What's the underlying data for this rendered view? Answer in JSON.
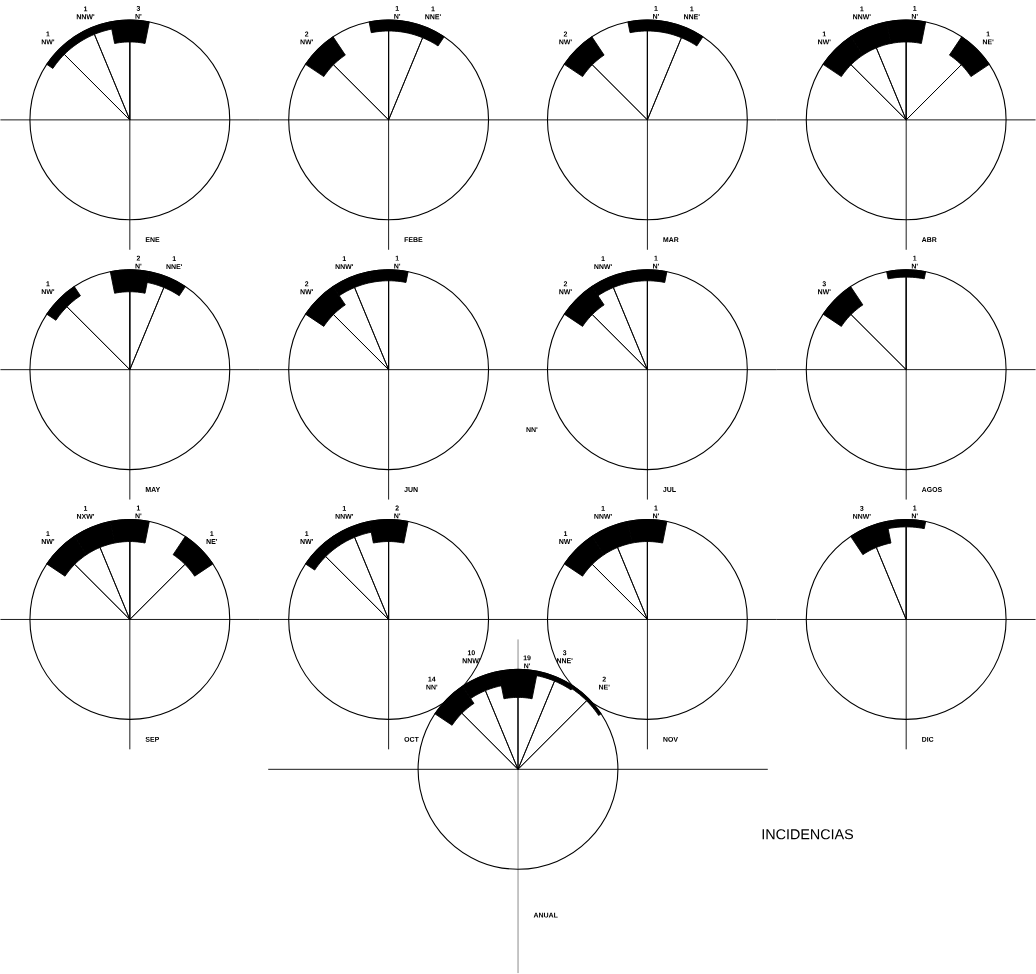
{
  "chart_data": [
    {
      "type": "other",
      "title": "ENE",
      "categories": [
        "NW'",
        "NNW'",
        "N'",
        null,
        null
      ],
      "values": [
        1,
        1,
        3,
        null,
        null
      ],
      "data_labels": true
    },
    {
      "type": "other",
      "title": "FEBE",
      "categories": [
        "NW'",
        null,
        "N'",
        "NNE'",
        null
      ],
      "values": [
        2,
        null,
        1,
        1,
        null
      ],
      "data_labels": true
    },
    {
      "type": "other",
      "title": "MAR",
      "categories": [
        "NW'",
        null,
        "N'",
        "NNE'",
        null
      ],
      "values": [
        2,
        null,
        1,
        1,
        null
      ],
      "data_labels": true
    },
    {
      "type": "other",
      "title": "ABR",
      "categories": [
        "NW'",
        "NNW'",
        "N'",
        null,
        "NE'"
      ],
      "values": [
        1,
        1,
        1,
        null,
        1
      ],
      "data_labels": true
    },
    {
      "type": "other",
      "title": "MAY",
      "categories": [
        "NW'",
        null,
        "N'",
        "NNE'",
        null
      ],
      "values": [
        1,
        null,
        2,
        1,
        null
      ],
      "data_labels": true
    },
    {
      "type": "other",
      "title": "JUN",
      "categories": [
        "NW'",
        "NNW'",
        "N'",
        null,
        null
      ],
      "values": [
        2,
        1,
        1,
        null,
        null
      ],
      "data_labels": true
    },
    {
      "type": "other",
      "title": "JUL",
      "categories": [
        "NW'",
        "NNW'",
        "N'",
        null,
        null
      ],
      "values": [
        2,
        1,
        1,
        null,
        null
      ],
      "data_labels": true,
      "annotations": [
        "NN'"
      ]
    },
    {
      "type": "other",
      "title": "AGOS",
      "categories": [
        "NW'",
        null,
        "N'",
        null,
        null
      ],
      "values": [
        3,
        null,
        1,
        null,
        null
      ],
      "data_labels": true
    },
    {
      "type": "other",
      "title": "SEP",
      "categories": [
        "NW'",
        "NXW'",
        "N'",
        null,
        "NE'"
      ],
      "values": [
        1,
        1,
        1,
        null,
        1
      ],
      "data_labels": true
    },
    {
      "type": "other",
      "title": "OCT",
      "categories": [
        "NW'",
        "NNW'",
        "N'",
        null,
        null
      ],
      "values": [
        1,
        1,
        2,
        null,
        null
      ],
      "data_labels": true
    },
    {
      "type": "other",
      "title": "NOV",
      "categories": [
        "NW'",
        "NNW'",
        "N'",
        null,
        null
      ],
      "values": [
        1,
        1,
        1,
        null,
        null
      ],
      "data_labels": true
    },
    {
      "type": "other",
      "title": "DIC",
      "categories": [
        null,
        "NNW'",
        "N'",
        null,
        null
      ],
      "values": [
        null,
        3,
        1,
        null,
        null
      ],
      "data_labels": true
    },
    {
      "type": "other",
      "title": "ANUAL",
      "categories": [
        "NN'",
        "NNW'",
        "N'",
        "NNE'",
        "NE'"
      ],
      "values": [
        14,
        10,
        19,
        3,
        2
      ],
      "data_labels": true,
      "annotations": [
        "INCIDENCIAS"
      ]
    }
  ]
}
